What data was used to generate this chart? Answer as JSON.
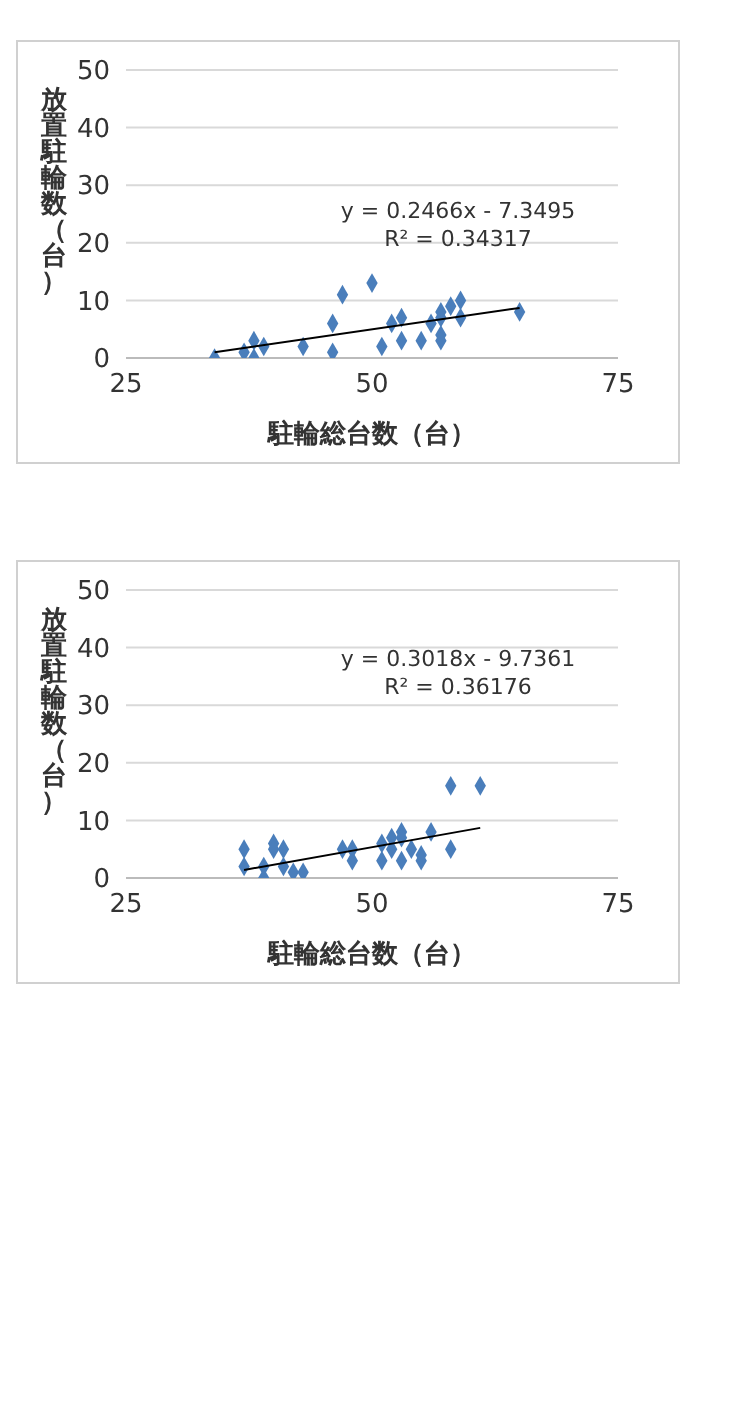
{
  "chart_data": [
    {
      "type": "scatter",
      "xlabel": "駐輪総台数（台）",
      "ylabel": "放置駐輪数（台）",
      "annotations": [
        "y = 0.2466x - 7.3495",
        "R² = 0.34317"
      ],
      "xlim": [
        25,
        75
      ],
      "xticks": [
        25,
        50,
        75
      ],
      "ylim": [
        0,
        50
      ],
      "yticks": [
        0,
        10,
        20,
        30,
        40,
        50
      ],
      "grid": "y",
      "series": [
        {
          "type": "scatter",
          "marker": "diamond",
          "color": "#4a7ebb",
          "x": [
            34,
            37,
            38,
            38,
            39,
            43,
            46,
            46,
            47,
            50,
            51,
            52,
            53,
            53,
            55,
            56,
            57,
            57,
            57,
            57,
            58,
            59,
            59,
            65
          ],
          "values": [
            0,
            1,
            3,
            0,
            2,
            2,
            6,
            1,
            11,
            13,
            2,
            6,
            7,
            3,
            3,
            6,
            8,
            7,
            4,
            3,
            9,
            10,
            7,
            8
          ]
        },
        {
          "type": "line",
          "marker": "none",
          "color": "#000000",
          "x": [
            34,
            65
          ],
          "values": [
            1.0,
            8.7
          ]
        }
      ]
    },
    {
      "type": "scatter",
      "xlabel": "駐輪総台数（台）",
      "ylabel": "放置駐輪数（台）",
      "annotations": [
        "y = 0.3018x - 9.7361",
        "R² = 0.36176"
      ],
      "xlim": [
        25,
        75
      ],
      "xticks": [
        25,
        50,
        75
      ],
      "ylim": [
        0,
        50
      ],
      "yticks": [
        0,
        10,
        20,
        30,
        40,
        50
      ],
      "grid": "y",
      "series": [
        {
          "type": "scatter",
          "marker": "diamond",
          "color": "#4a7ebb",
          "x": [
            37,
            37,
            39,
            39,
            40,
            40,
            41,
            41,
            42,
            43,
            47,
            48,
            48,
            51,
            51,
            52,
            52,
            53,
            53,
            53,
            54,
            55,
            55,
            56,
            58,
            58,
            61
          ],
          "values": [
            5,
            2,
            2,
            0,
            6,
            5,
            5,
            2,
            1,
            1,
            5,
            5,
            3,
            6,
            3,
            7,
            5,
            8,
            7,
            3,
            5,
            4,
            3,
            8,
            16,
            5,
            16
          ]
        },
        {
          "type": "line",
          "marker": "none",
          "color": "#000000",
          "x": [
            37,
            61
          ],
          "values": [
            1.4,
            8.7
          ]
        }
      ]
    }
  ]
}
